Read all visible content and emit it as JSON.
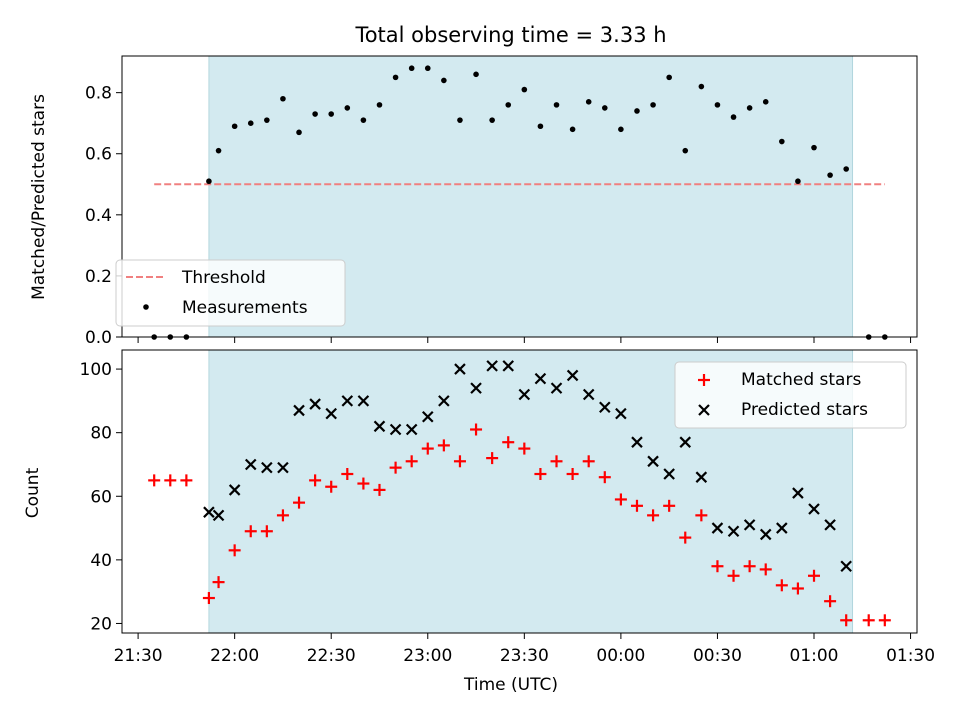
{
  "chart_data": [
    {
      "type": "scatter",
      "title": "Total observing time = 3.33 h",
      "ylabel": "Matched/Predicted stars",
      "xlabel": "",
      "xlim": [
        "21:25",
        "01:32"
      ],
      "ylim": [
        0,
        0.92
      ],
      "yticks": [
        "0.0",
        "0.2",
        "0.4",
        "0.6",
        "0.8"
      ],
      "shaded_interval": {
        "start": "21:52",
        "end": "01:12",
        "color": "#d3eaf0"
      },
      "legend_position": "lower-left",
      "series": [
        {
          "name": "Threshold",
          "style": "dashed-line",
          "color": "#f08080",
          "x": [
            "21:35",
            "01:22"
          ],
          "y": [
            0.5,
            0.5
          ]
        },
        {
          "name": "Measurements",
          "style": "dot",
          "color": "#000000",
          "x": [
            "21:35",
            "21:40",
            "21:45",
            "21:52",
            "21:55",
            "22:00",
            "22:05",
            "22:10",
            "22:15",
            "22:20",
            "22:25",
            "22:30",
            "22:35",
            "22:40",
            "22:45",
            "22:50",
            "22:55",
            "23:00",
            "23:05",
            "23:10",
            "23:15",
            "23:20",
            "23:25",
            "23:30",
            "23:35",
            "23:40",
            "23:45",
            "23:50",
            "23:55",
            "00:00",
            "00:05",
            "00:10",
            "00:15",
            "00:20",
            "00:25",
            "00:30",
            "00:35",
            "00:40",
            "00:45",
            "00:50",
            "00:55",
            "01:00",
            "01:05",
            "01:10",
            "01:17",
            "01:22"
          ],
          "y": [
            0.0,
            0.0,
            0.0,
            0.51,
            0.61,
            0.69,
            0.7,
            0.71,
            0.78,
            0.67,
            0.73,
            0.73,
            0.75,
            0.71,
            0.76,
            0.85,
            0.88,
            0.88,
            0.84,
            0.71,
            0.86,
            0.71,
            0.76,
            0.81,
            0.69,
            0.76,
            0.68,
            0.77,
            0.75,
            0.68,
            0.74,
            0.76,
            0.85,
            0.61,
            0.82,
            0.76,
            0.72,
            0.75,
            0.77,
            0.64,
            0.51,
            0.62,
            0.53,
            0.55,
            0.0,
            0.0
          ]
        }
      ]
    },
    {
      "type": "scatter",
      "title": "",
      "ylabel": "Count",
      "xlabel": "Time (UTC)",
      "xlim": [
        "21:25",
        "01:32"
      ],
      "ylim": [
        17,
        106
      ],
      "yticks": [
        "20",
        "40",
        "60",
        "80",
        "100"
      ],
      "xticks": [
        "21:30",
        "22:00",
        "22:30",
        "23:00",
        "23:30",
        "00:00",
        "00:30",
        "01:00",
        "01:30"
      ],
      "shaded_interval": {
        "start": "21:52",
        "end": "01:12",
        "color": "#d3eaf0"
      },
      "legend_position": "upper-right",
      "series": [
        {
          "name": "Matched stars",
          "style": "plus",
          "color": "#ff0000",
          "x": [
            "21:35",
            "21:40",
            "21:45",
            "21:52",
            "21:55",
            "22:00",
            "22:05",
            "22:10",
            "22:15",
            "22:20",
            "22:25",
            "22:30",
            "22:35",
            "22:40",
            "22:45",
            "22:50",
            "22:55",
            "23:00",
            "23:05",
            "23:10",
            "23:15",
            "23:20",
            "23:25",
            "23:30",
            "23:35",
            "23:40",
            "23:45",
            "23:50",
            "23:55",
            "00:00",
            "00:05",
            "00:10",
            "00:15",
            "00:20",
            "00:25",
            "00:30",
            "00:35",
            "00:40",
            "00:45",
            "00:50",
            "00:55",
            "01:00",
            "01:05",
            "01:10",
            "01:17",
            "01:22"
          ],
          "y": [
            65,
            65,
            65,
            28,
            33,
            43,
            49,
            49,
            54,
            58,
            65,
            63,
            67,
            64,
            62,
            69,
            71,
            75,
            76,
            71,
            81,
            72,
            77,
            75,
            67,
            71,
            67,
            71,
            66,
            59,
            57,
            54,
            57,
            47,
            54,
            38,
            35,
            38,
            37,
            32,
            31,
            35,
            27,
            21,
            21,
            21
          ]
        },
        {
          "name": "Predicted stars",
          "style": "cross",
          "color": "#000000",
          "x": [
            "21:52",
            "21:55",
            "22:00",
            "22:05",
            "22:10",
            "22:15",
            "22:20",
            "22:25",
            "22:30",
            "22:35",
            "22:40",
            "22:45",
            "22:50",
            "22:55",
            "23:00",
            "23:05",
            "23:10",
            "23:15",
            "23:20",
            "23:25",
            "23:30",
            "23:35",
            "23:40",
            "23:45",
            "23:50",
            "23:55",
            "00:00",
            "00:05",
            "00:10",
            "00:15",
            "00:20",
            "00:25",
            "00:30",
            "00:35",
            "00:40",
            "00:45",
            "00:50",
            "00:55",
            "01:00",
            "01:05",
            "01:10"
          ],
          "y": [
            55,
            54,
            62,
            70,
            69,
            69,
            87,
            89,
            86,
            90,
            90,
            82,
            81,
            81,
            85,
            90,
            100,
            94,
            101,
            101,
            92,
            97,
            94,
            98,
            92,
            88,
            86,
            77,
            71,
            67,
            77,
            66,
            50,
            49,
            51,
            48,
            50,
            61,
            56,
            51,
            38
          ]
        }
      ]
    }
  ]
}
